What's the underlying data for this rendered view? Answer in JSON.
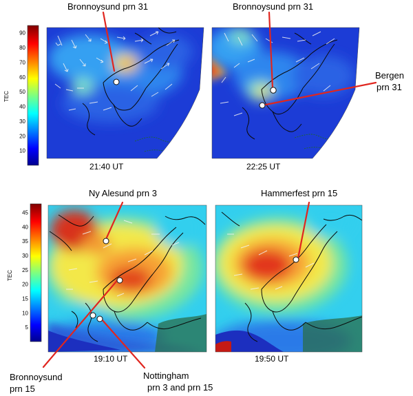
{
  "colorbars": [
    {
      "axis_label": "TEC",
      "ticks": [
        "10",
        "20",
        "30",
        "40",
        "50",
        "60",
        "70",
        "80",
        "90"
      ],
      "range": [
        0,
        95
      ]
    },
    {
      "axis_label": "TEC",
      "ticks": [
        "5",
        "10",
        "15",
        "20",
        "25",
        "30",
        "35",
        "40",
        "45"
      ],
      "range": [
        0,
        48
      ]
    }
  ],
  "panels": [
    {
      "time": "21:40 UT",
      "stations": [
        {
          "label": "Bronnoysund prn 31"
        }
      ]
    },
    {
      "time": "22:25 UT",
      "stations": [
        {
          "label": "Bronnoysund prn 31"
        },
        {
          "label": "Bergen prn 31",
          "lines": [
            "Bergen",
            "prn 31"
          ]
        }
      ]
    },
    {
      "time": "19:10 UT",
      "stations": [
        {
          "label": "Ny Alesund prn 3"
        },
        {
          "label": "Bronnoysund prn 15",
          "lines": [
            "Bronnoysund",
            "prn 15"
          ]
        },
        {
          "label": "Nottingham prn 3 and prn 15",
          "lines": [
            "Nottingham",
            "prn 3 and prn 15"
          ]
        }
      ]
    },
    {
      "time": "19:50 UT",
      "stations": [
        {
          "label": "Hammerfest prn 15"
        }
      ]
    }
  ],
  "colors": {
    "annotation_line": "#e0261f",
    "station_marker": "#ffffff",
    "coastline": "#0a0a0a",
    "vector": "#f2f2f2"
  }
}
